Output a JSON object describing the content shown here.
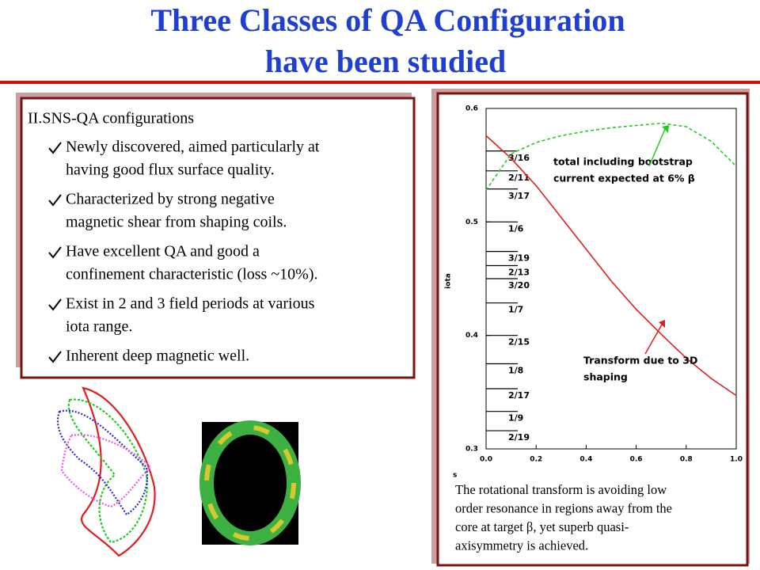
{
  "header": {
    "title_lines": [
      "Three Classes of QA Configuration",
      "have been studied"
    ]
  },
  "left_panel": {
    "heading": "II.SNS-QA configurations",
    "bullets": [
      [
        "Newly discovered, aimed particularly at",
        "having good flux surface quality."
      ],
      [
        "Characterized by strong negative",
        "magnetic shear from shaping coils."
      ],
      [
        "Have excellent QA and good a",
        "confinement characteristic (loss ~10%)."
      ],
      [
        "Exist in 2 and 3 field periods at various",
        "iota range."
      ],
      [
        "Inherent deep magnetic well."
      ]
    ]
  },
  "chart_data": {
    "type": "line",
    "xlabel": "s",
    "ylabel": "iota",
    "x": [
      0,
      0.1,
      0.2,
      0.3,
      0.4,
      0.5,
      0.6,
      0.7,
      0.8,
      0.9,
      1.0
    ],
    "series": [
      {
        "color": "#e02020",
        "dash": "solid",
        "values": [
          0.576,
          0.556,
          0.532,
          0.504,
          0.476,
          0.448,
          0.423,
          0.401,
          0.38,
          0.362,
          0.347
        ]
      },
      {
        "color": "#22cc22",
        "dash": "dashed",
        "values": [
          0.528,
          0.56,
          0.57,
          0.576,
          0.58,
          0.583,
          0.585,
          0.587,
          0.584,
          0.571,
          0.549
        ]
      }
    ],
    "xlim": [
      0,
      1
    ],
    "ylim": [
      0.3,
      0.6
    ],
    "xticks": [
      {
        "value": 0,
        "label": "0.0"
      },
      {
        "value": 0.2,
        "label": "0.2"
      },
      {
        "value": 0.4,
        "label": "0.4"
      },
      {
        "value": 0.6,
        "label": "0.6"
      },
      {
        "value": 0.8,
        "label": "0.8"
      },
      {
        "value": 1,
        "label": "1.0"
      }
    ],
    "yticks": [
      0.3,
      0.4,
      0.5,
      0.6
    ],
    "resonances": [
      {
        "label": "3/16",
        "value": 0.5625
      },
      {
        "label": "2/11",
        "value": 0.545
      },
      {
        "label": "3/17",
        "value": 0.529
      },
      {
        "label": "1/6",
        "value": 0.5
      },
      {
        "label": "3/19",
        "value": 0.474
      },
      {
        "label": "2/13",
        "value": 0.4615
      },
      {
        "label": "3/20",
        "value": 0.45
      },
      {
        "label": "1/7",
        "value": 0.4286
      },
      {
        "label": "2/15",
        "value": 0.4
      },
      {
        "label": "1/8",
        "value": 0.375
      },
      {
        "label": "2/17",
        "value": 0.353
      },
      {
        "label": "1/9",
        "value": 0.333
      },
      {
        "label": "2/19",
        "value": 0.316
      }
    ],
    "annotations": [
      [
        "total including bootstrap",
        "current expected at 6% β"
      ],
      [
        "Transform due to 3D",
        "shaping"
      ]
    ]
  },
  "caption": [
    "The rotational transform is avoiding low",
    "order resonance in regions away from the",
    "core at target β, yet superb quasi-",
    "axisymmetry is achieved."
  ]
}
